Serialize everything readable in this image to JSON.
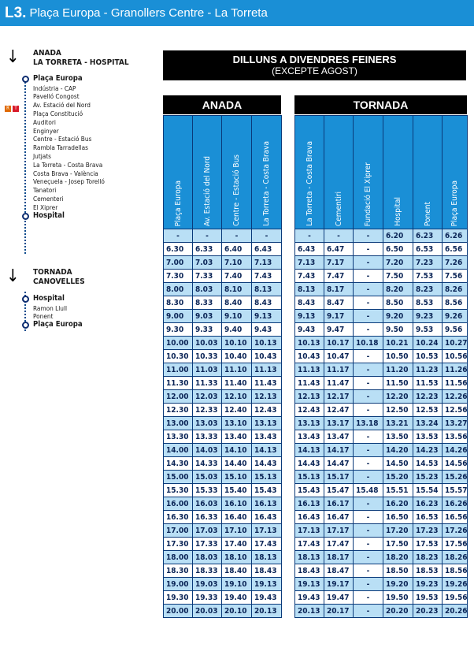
{
  "title": {
    "line": "L3.",
    "name": "Plaça Europa - Granollers Centre - La Torreta"
  },
  "route": {
    "anada_label": "ANADA",
    "anada_sub": "LA TORRETA - HOSPITAL",
    "anada_stops": [
      {
        "name": "Plaça Europa",
        "major": true
      },
      {
        "name": "Indústria - CAP",
        "major": false
      },
      {
        "name": "Pavelló Congost",
        "major": false
      },
      {
        "name": "Av. Estació del Nord",
        "major": false
      },
      {
        "name": "Plaça Constitució",
        "major": false
      },
      {
        "name": "Auditori",
        "major": false
      },
      {
        "name": "Enginyer",
        "major": false
      },
      {
        "name": "Centre - Estació Bus",
        "major": false
      },
      {
        "name": "Rambla Tarradellas",
        "major": false
      },
      {
        "name": "Jutjats",
        "major": false
      },
      {
        "name": "La Torreta - Costa Brava",
        "major": false
      },
      {
        "name": "Costa Brava - València",
        "major": false
      },
      {
        "name": "Veneçuela - Josep Torelló",
        "major": false
      },
      {
        "name": "Tanatori",
        "major": false
      },
      {
        "name": "Cementeri",
        "major": false
      },
      {
        "name": "El Xiprer",
        "major": false
      },
      {
        "name": "Hospital",
        "major": true
      }
    ],
    "tornada_label": "TORNADA",
    "tornada_sub": "CANOVELLES",
    "tornada_stops": [
      {
        "name": "Hospital",
        "major": true
      },
      {
        "name": "Ramon Llull",
        "major": false
      },
      {
        "name": "Ponent",
        "major": false
      },
      {
        "name": "Plaça Europa",
        "major": true
      }
    ],
    "badges": [
      "R",
      "T"
    ]
  },
  "schedule": {
    "days_title": "DILLUNS A DIVENDRES FEINERS",
    "days_sub": "(EXCEPTE AGOST)"
  },
  "anada": {
    "label": "ANADA",
    "columns": [
      "Plaça Europa",
      "Av. Estació del Nord",
      "Centre - Estació Bus",
      "La Torreta - Costa Brava"
    ],
    "rows": [
      [
        "-",
        "-",
        "-",
        "-"
      ],
      [
        "6.30",
        "6.33",
        "6.40",
        "6.43"
      ],
      [
        "7.00",
        "7.03",
        "7.10",
        "7.13"
      ],
      [
        "7.30",
        "7.33",
        "7.40",
        "7.43"
      ],
      [
        "8.00",
        "8.03",
        "8.10",
        "8.13"
      ],
      [
        "8.30",
        "8.33",
        "8.40",
        "8.43"
      ],
      [
        "9.00",
        "9.03",
        "9.10",
        "9.13"
      ],
      [
        "9.30",
        "9.33",
        "9.40",
        "9.43"
      ],
      [
        "10.00",
        "10.03",
        "10.10",
        "10.13"
      ],
      [
        "10.30",
        "10.33",
        "10.40",
        "10.43"
      ],
      [
        "11.00",
        "11.03",
        "11.10",
        "11.13"
      ],
      [
        "11.30",
        "11.33",
        "11.40",
        "11.43"
      ],
      [
        "12.00",
        "12.03",
        "12.10",
        "12.13"
      ],
      [
        "12.30",
        "12.33",
        "12.40",
        "12.43"
      ],
      [
        "13.00",
        "13.03",
        "13.10",
        "13.13"
      ],
      [
        "13.30",
        "13.33",
        "13.40",
        "13.43"
      ],
      [
        "14.00",
        "14.03",
        "14.10",
        "14.13"
      ],
      [
        "14.30",
        "14.33",
        "14.40",
        "14.43"
      ],
      [
        "15.00",
        "15.03",
        "15.10",
        "15.13"
      ],
      [
        "15.30",
        "15.33",
        "15.40",
        "15.43"
      ],
      [
        "16.00",
        "16.03",
        "16.10",
        "16.13"
      ],
      [
        "16.30",
        "16.33",
        "16.40",
        "16.43"
      ],
      [
        "17.00",
        "17.03",
        "17.10",
        "17.13"
      ],
      [
        "17.30",
        "17.33",
        "17.40",
        "17.43"
      ],
      [
        "18.00",
        "18.03",
        "18.10",
        "18.13"
      ],
      [
        "18.30",
        "18.33",
        "18.40",
        "18.43"
      ],
      [
        "19.00",
        "19.03",
        "19.10",
        "19.13"
      ],
      [
        "19.30",
        "19.33",
        "19.40",
        "19.43"
      ],
      [
        "20.00",
        "20.03",
        "20.10",
        "20.13"
      ]
    ]
  },
  "tornada": {
    "label": "TORNADA",
    "columns": [
      "La Torreta - Costa Brava",
      "Cementiri",
      "Fundació El Xiprer",
      "Hospital",
      "Ponent",
      "Plaça Europa"
    ],
    "rows": [
      [
        "-",
        "-",
        "-",
        "6.20",
        "6.23",
        "6.26"
      ],
      [
        "6.43",
        "6.47",
        "-",
        "6.50",
        "6.53",
        "6.56"
      ],
      [
        "7.13",
        "7.17",
        "-",
        "7.20",
        "7.23",
        "7.26"
      ],
      [
        "7.43",
        "7.47",
        "-",
        "7.50",
        "7.53",
        "7.56"
      ],
      [
        "8.13",
        "8.17",
        "-",
        "8.20",
        "8.23",
        "8.26"
      ],
      [
        "8.43",
        "8.47",
        "-",
        "8.50",
        "8.53",
        "8.56"
      ],
      [
        "9.13",
        "9.17",
        "-",
        "9.20",
        "9.23",
        "9.26"
      ],
      [
        "9.43",
        "9.47",
        "-",
        "9.50",
        "9.53",
        "9.56"
      ],
      [
        "10.13",
        "10.17",
        "10.18",
        "10.21",
        "10.24",
        "10.27"
      ],
      [
        "10.43",
        "10.47",
        "-",
        "10.50",
        "10.53",
        "10.56"
      ],
      [
        "11.13",
        "11.17",
        "-",
        "11.20",
        "11.23",
        "11.26"
      ],
      [
        "11.43",
        "11.47",
        "-",
        "11.50",
        "11.53",
        "11.56"
      ],
      [
        "12.13",
        "12.17",
        "-",
        "12.20",
        "12.23",
        "12.26"
      ],
      [
        "12.43",
        "12.47",
        "-",
        "12.50",
        "12.53",
        "12.56"
      ],
      [
        "13.13",
        "13.17",
        "13.18",
        "13.21",
        "13.24",
        "13.27"
      ],
      [
        "13.43",
        "13.47",
        "-",
        "13.50",
        "13.53",
        "13.56"
      ],
      [
        "14.13",
        "14.17",
        "-",
        "14.20",
        "14.23",
        "14.26"
      ],
      [
        "14.43",
        "14.47",
        "-",
        "14.50",
        "14.53",
        "14.56"
      ],
      [
        "15.13",
        "15.17",
        "-",
        "15.20",
        "15.23",
        "15.26"
      ],
      [
        "15.43",
        "15.47",
        "15.48",
        "15.51",
        "15.54",
        "15.57"
      ],
      [
        "16.13",
        "16.17",
        "-",
        "16.20",
        "16.23",
        "16.26"
      ],
      [
        "16.43",
        "16.47",
        "-",
        "16.50",
        "16.53",
        "16.56"
      ],
      [
        "17.13",
        "17.17",
        "-",
        "17.20",
        "17.23",
        "17.26"
      ],
      [
        "17.43",
        "17.47",
        "-",
        "17.50",
        "17.53",
        "17.56"
      ],
      [
        "18.13",
        "18.17",
        "-",
        "18.20",
        "18.23",
        "18.26"
      ],
      [
        "18.43",
        "18.47",
        "-",
        "18.50",
        "18.53",
        "18.56"
      ],
      [
        "19.13",
        "19.17",
        "-",
        "19.20",
        "19.23",
        "19.26"
      ],
      [
        "19.43",
        "19.47",
        "-",
        "19.50",
        "19.53",
        "19.56"
      ],
      [
        "20.13",
        "20.17",
        "-",
        "20.20",
        "20.23",
        "20.26"
      ]
    ]
  }
}
